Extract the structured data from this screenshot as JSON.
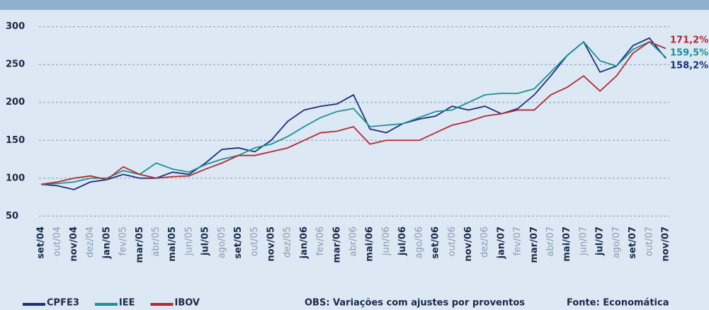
{
  "chart_data": {
    "type": "line",
    "categories": [
      "set/04",
      "out/04",
      "nov/04",
      "dez/04",
      "jan/05",
      "fev/05",
      "mar/05",
      "abr/05",
      "mai/05",
      "jun/05",
      "jul/05",
      "ago/05",
      "set/05",
      "out/05",
      "nov/05",
      "dez/05",
      "jan/06",
      "fev/06",
      "mar/06",
      "abr/06",
      "mai/06",
      "jun/06",
      "jul/06",
      "ago/06",
      "set/06",
      "out/06",
      "nov/06",
      "dez/06",
      "jan/07",
      "fev/07",
      "mar/07",
      "abr/07",
      "mai/07",
      "jun/07",
      "jul/07",
      "ago/07",
      "set/07",
      "out/07",
      "nov/07"
    ],
    "series": [
      {
        "name": "CPFE3",
        "color": "#1f2f7a",
        "end_label": "158,2%",
        "values": [
          92,
          90,
          85,
          95,
          98,
          105,
          100,
          100,
          108,
          105,
          120,
          138,
          140,
          135,
          150,
          175,
          190,
          195,
          198,
          210,
          165,
          160,
          172,
          178,
          182,
          195,
          190,
          195,
          185,
          192,
          210,
          235,
          262,
          280,
          240,
          248,
          275,
          285,
          258.2
        ]
      },
      {
        "name": "IEE",
        "color": "#1a9296",
        "end_label": "159,5%",
        "values": [
          92,
          93,
          95,
          100,
          100,
          110,
          105,
          120,
          112,
          108,
          118,
          125,
          130,
          140,
          145,
          155,
          168,
          180,
          188,
          192,
          168,
          170,
          172,
          180,
          188,
          190,
          200,
          210,
          212,
          212,
          218,
          240,
          262,
          280,
          255,
          248,
          270,
          280,
          259.5
        ]
      },
      {
        "name": "IBOV",
        "color": "#b52a35",
        "end_label": "171,2%",
        "values": [
          92,
          95,
          100,
          103,
          98,
          115,
          105,
          100,
          102,
          103,
          112,
          120,
          130,
          130,
          135,
          140,
          150,
          160,
          162,
          168,
          145,
          150,
          150,
          150,
          160,
          170,
          175,
          182,
          185,
          190,
          190,
          210,
          220,
          235,
          215,
          235,
          265,
          280,
          271.2
        ]
      }
    ],
    "ylim": [
      40,
      310
    ],
    "yticks": [
      50,
      100,
      150,
      200,
      250,
      300
    ],
    "grid": true,
    "note": "OBS: Variações com ajustes por proventos",
    "source": "Fonte: Economática"
  }
}
